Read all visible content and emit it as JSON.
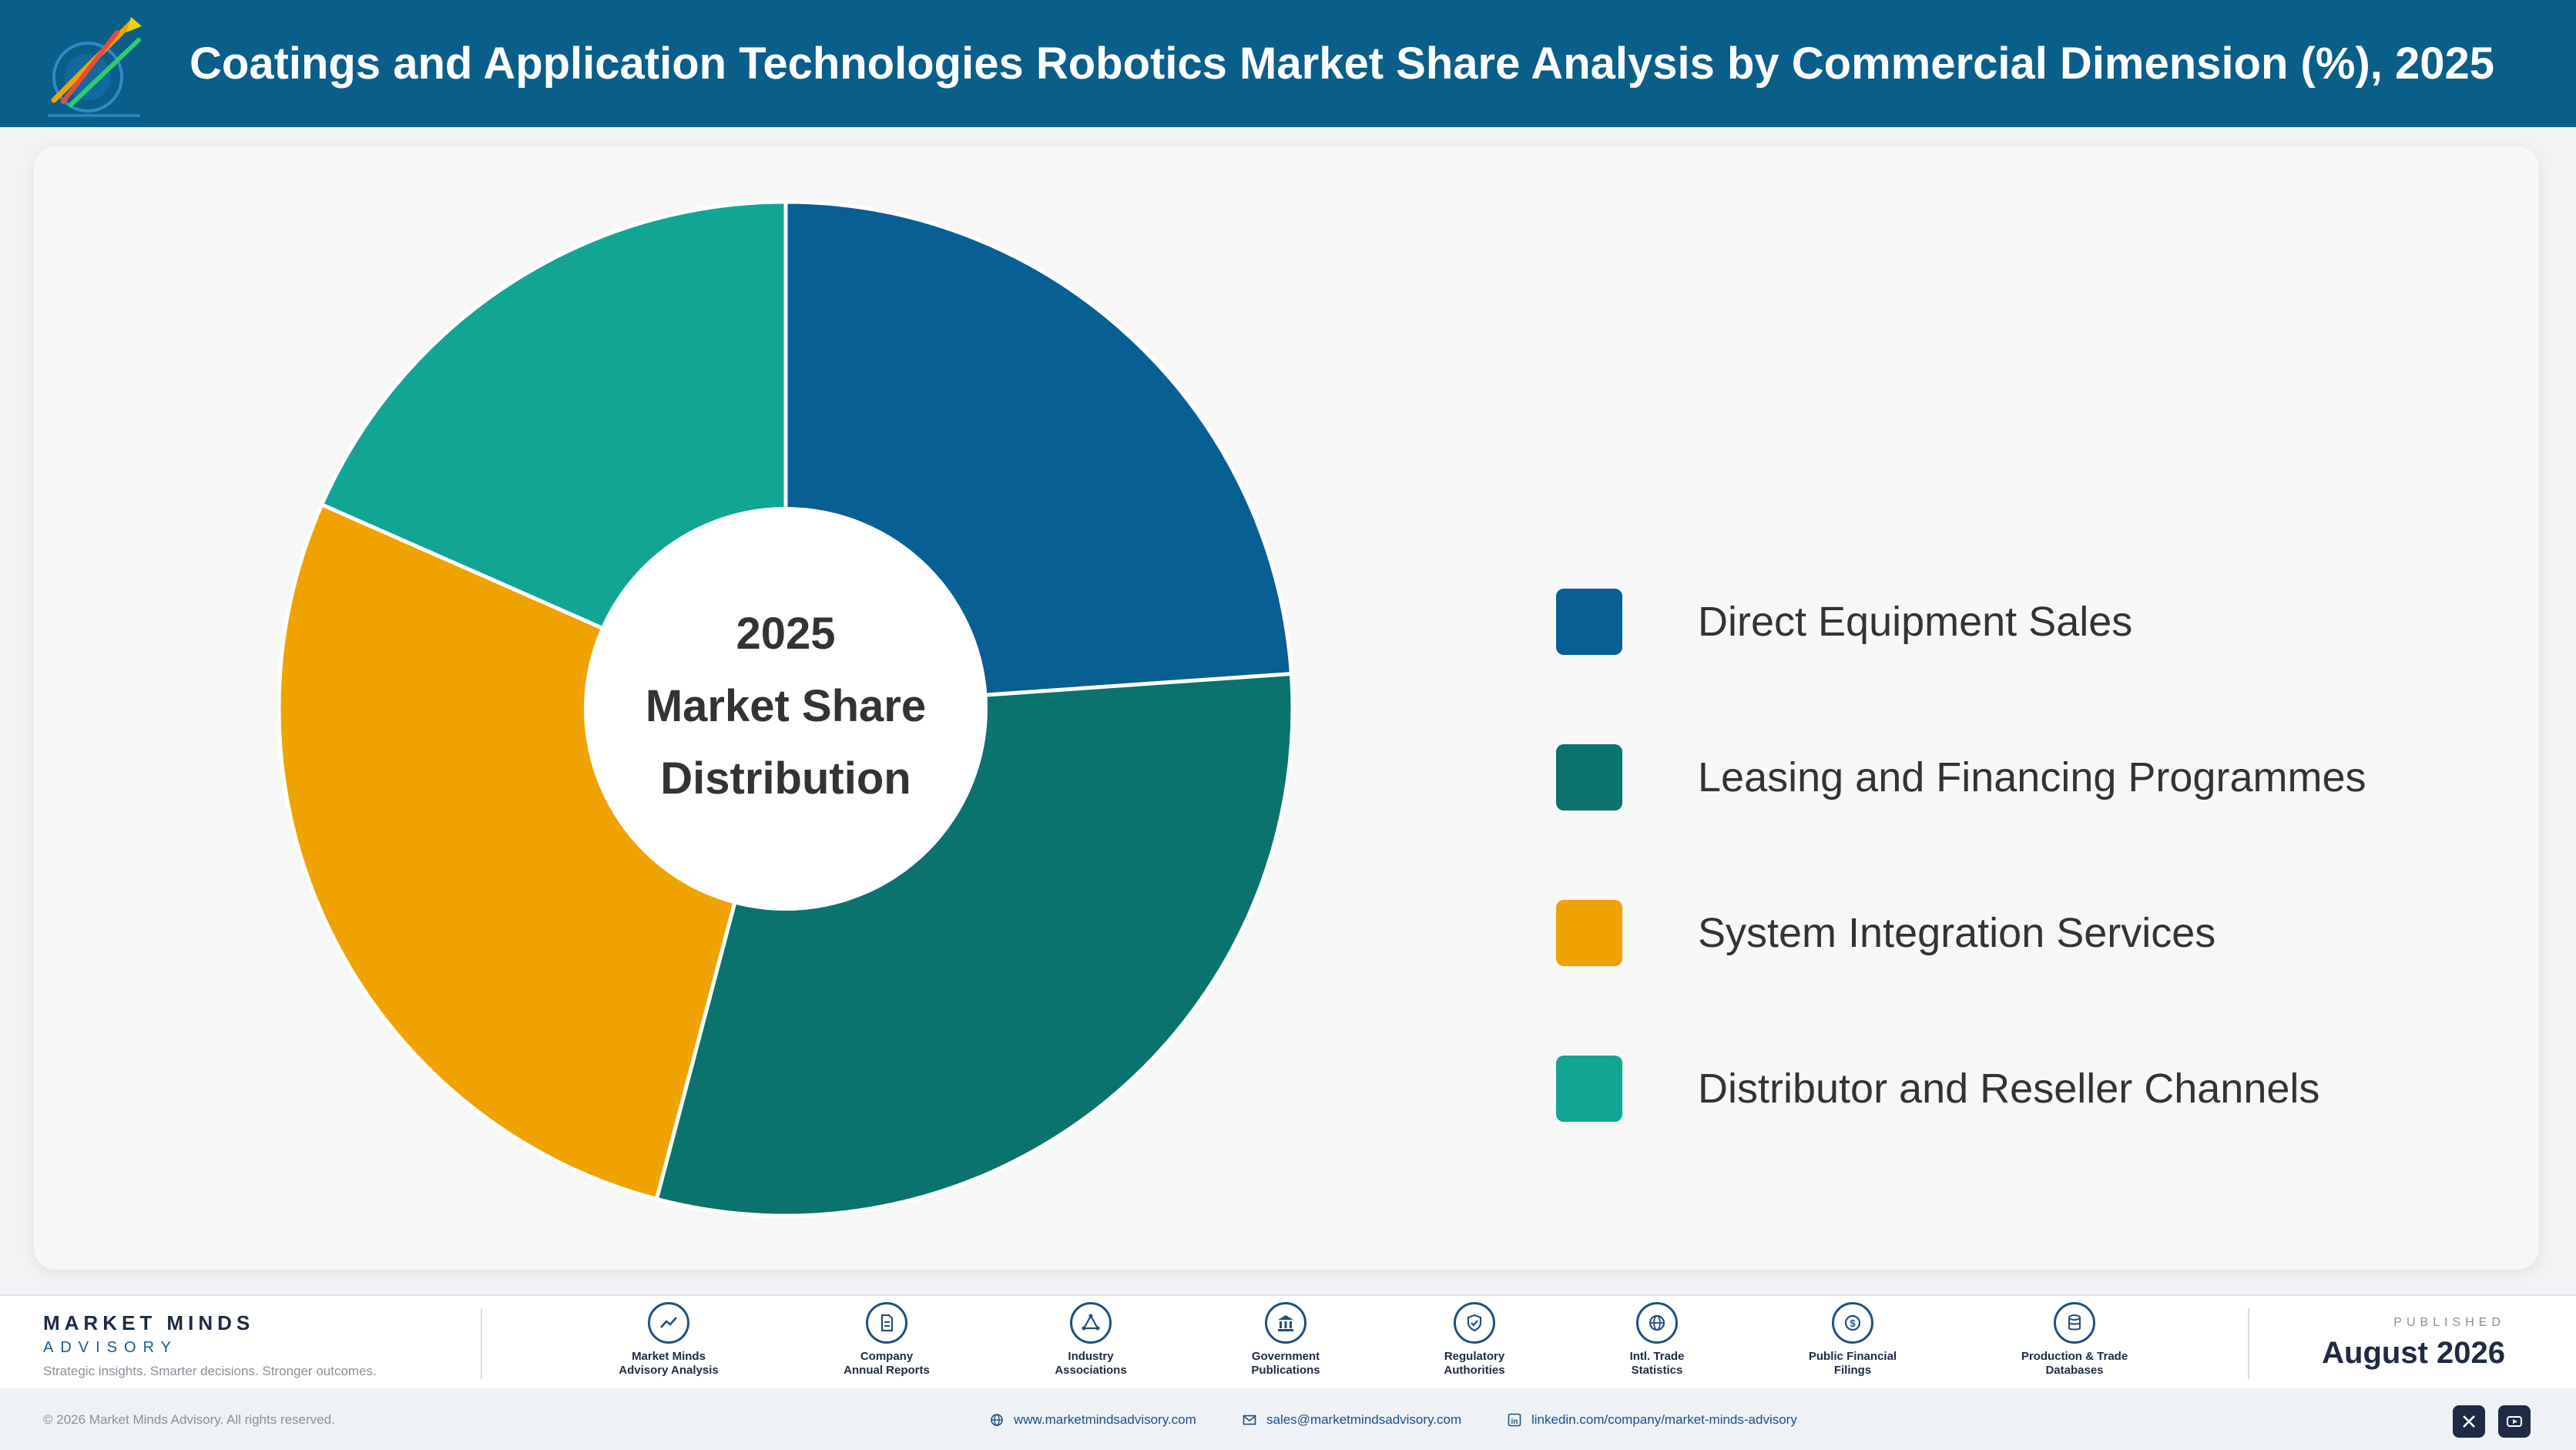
{
  "header": {
    "title": "Coatings and Application Technologies Robotics Market Share Analysis by Commercial Dimension (%), 2025",
    "logo_icon": "market-minds-logo-icon"
  },
  "chart_data": {
    "type": "pie",
    "style": "donut",
    "title": "Coatings and Application Technologies Robotics Market Share Analysis by Commercial Dimension (%), 2025",
    "center_label": [
      "2025",
      "Market Share",
      "Distribution"
    ],
    "legend_position": "right",
    "categories": [
      "Direct Equipment Sales",
      "Leasing and Financing Programmes",
      "System Integration Services",
      "Distributor and Reseller Channels"
    ],
    "values": [
      23.9,
      30.2,
      27.5,
      18.4
    ],
    "colors": [
      "#075f94",
      "#0a736e",
      "#f0a300",
      "#12a594"
    ]
  },
  "footer": {
    "brand_name": "MARKET MINDS",
    "brand_sub": "ADVISORY",
    "tagline": "Strategic insights. Smarter decisions. Stronger outcomes.",
    "sources": [
      {
        "label": "Market Minds\nAdvisory Analysis",
        "icon": "trend-chart-icon"
      },
      {
        "label": "Company\nAnnual Reports",
        "icon": "document-icon"
      },
      {
        "label": "Industry\nAssociations",
        "icon": "network-icon"
      },
      {
        "label": "Government\nPublications",
        "icon": "government-building-icon"
      },
      {
        "label": "Regulatory\nAuthorities",
        "icon": "shield-check-icon"
      },
      {
        "label": "Intl. Trade\nStatistics",
        "icon": "globe-icon"
      },
      {
        "label": "Public Financial\nFilings",
        "icon": "coin-icon"
      },
      {
        "label": "Production & Trade\nDatabases",
        "icon": "database-icon"
      }
    ],
    "published_label": "PUBLISHED",
    "published_date": "August 2026"
  },
  "bottom_bar": {
    "copyright": "© 2026 Market Minds Advisory. All rights reserved.",
    "website": "www.marketmindsadvisory.com",
    "email": "sales@marketmindsadvisory.com",
    "linkedin": "linkedin.com/company/market-minds-advisory",
    "social_icons": [
      "x-icon",
      "youtube-icon"
    ]
  }
}
